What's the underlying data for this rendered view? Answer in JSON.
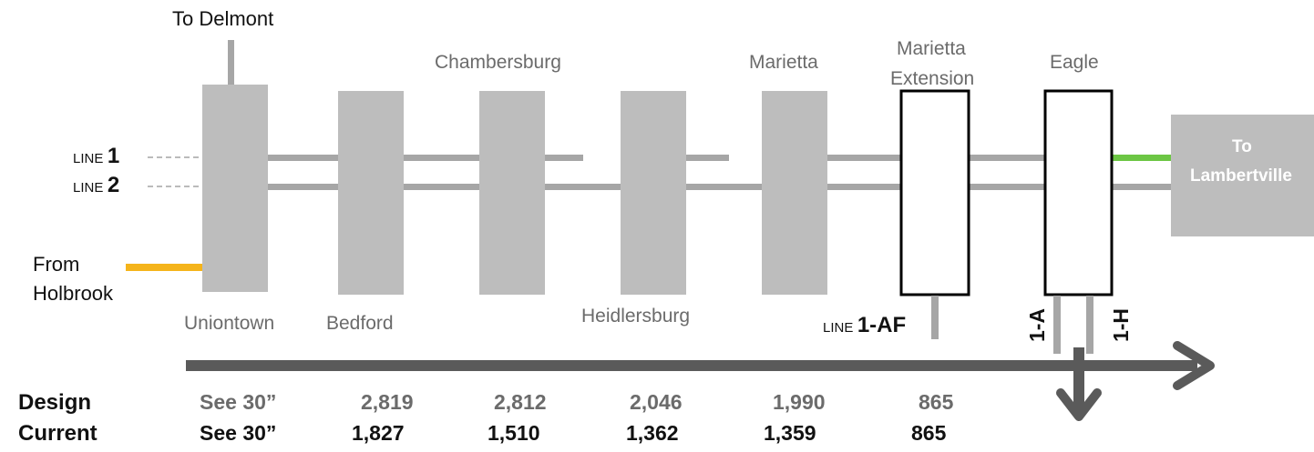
{
  "labels": {
    "to_delmont": "To Delmont",
    "from_holbrook_line1": "From",
    "from_holbrook_line2": "Holbrook",
    "to_lambertville_line1": "To",
    "to_lambertville_line2": "Lambertville"
  },
  "lines": {
    "line_word": "LINE",
    "line1": "1",
    "line2": "2",
    "line_1af": "1-AF",
    "line_1a": "1-A",
    "line_1h": "1-H"
  },
  "stations": {
    "uniontown": "Uniontown",
    "bedford": "Bedford",
    "chambersburg": "Chambersburg",
    "heidlersburg": "Heidlersburg",
    "marietta": "Marietta",
    "marietta_ext_line1": "Marietta",
    "marietta_ext_line2": "Extension",
    "eagle": "Eagle"
  },
  "table": {
    "design_label": "Design",
    "current_label": "Current",
    "design": [
      "See 30”",
      "2,819",
      "2,812",
      "2,046",
      "1,990",
      "865"
    ],
    "current": [
      "See 30”",
      "1,827",
      "1,510",
      "1,362",
      "1,359",
      "865"
    ]
  },
  "colors": {
    "station_fill": "#bdbdbd",
    "pipe": "#a6a6a6",
    "holbrook": "#f5b41b",
    "lambertville_line": "#6cc644",
    "arrow": "#5a5a5a"
  }
}
